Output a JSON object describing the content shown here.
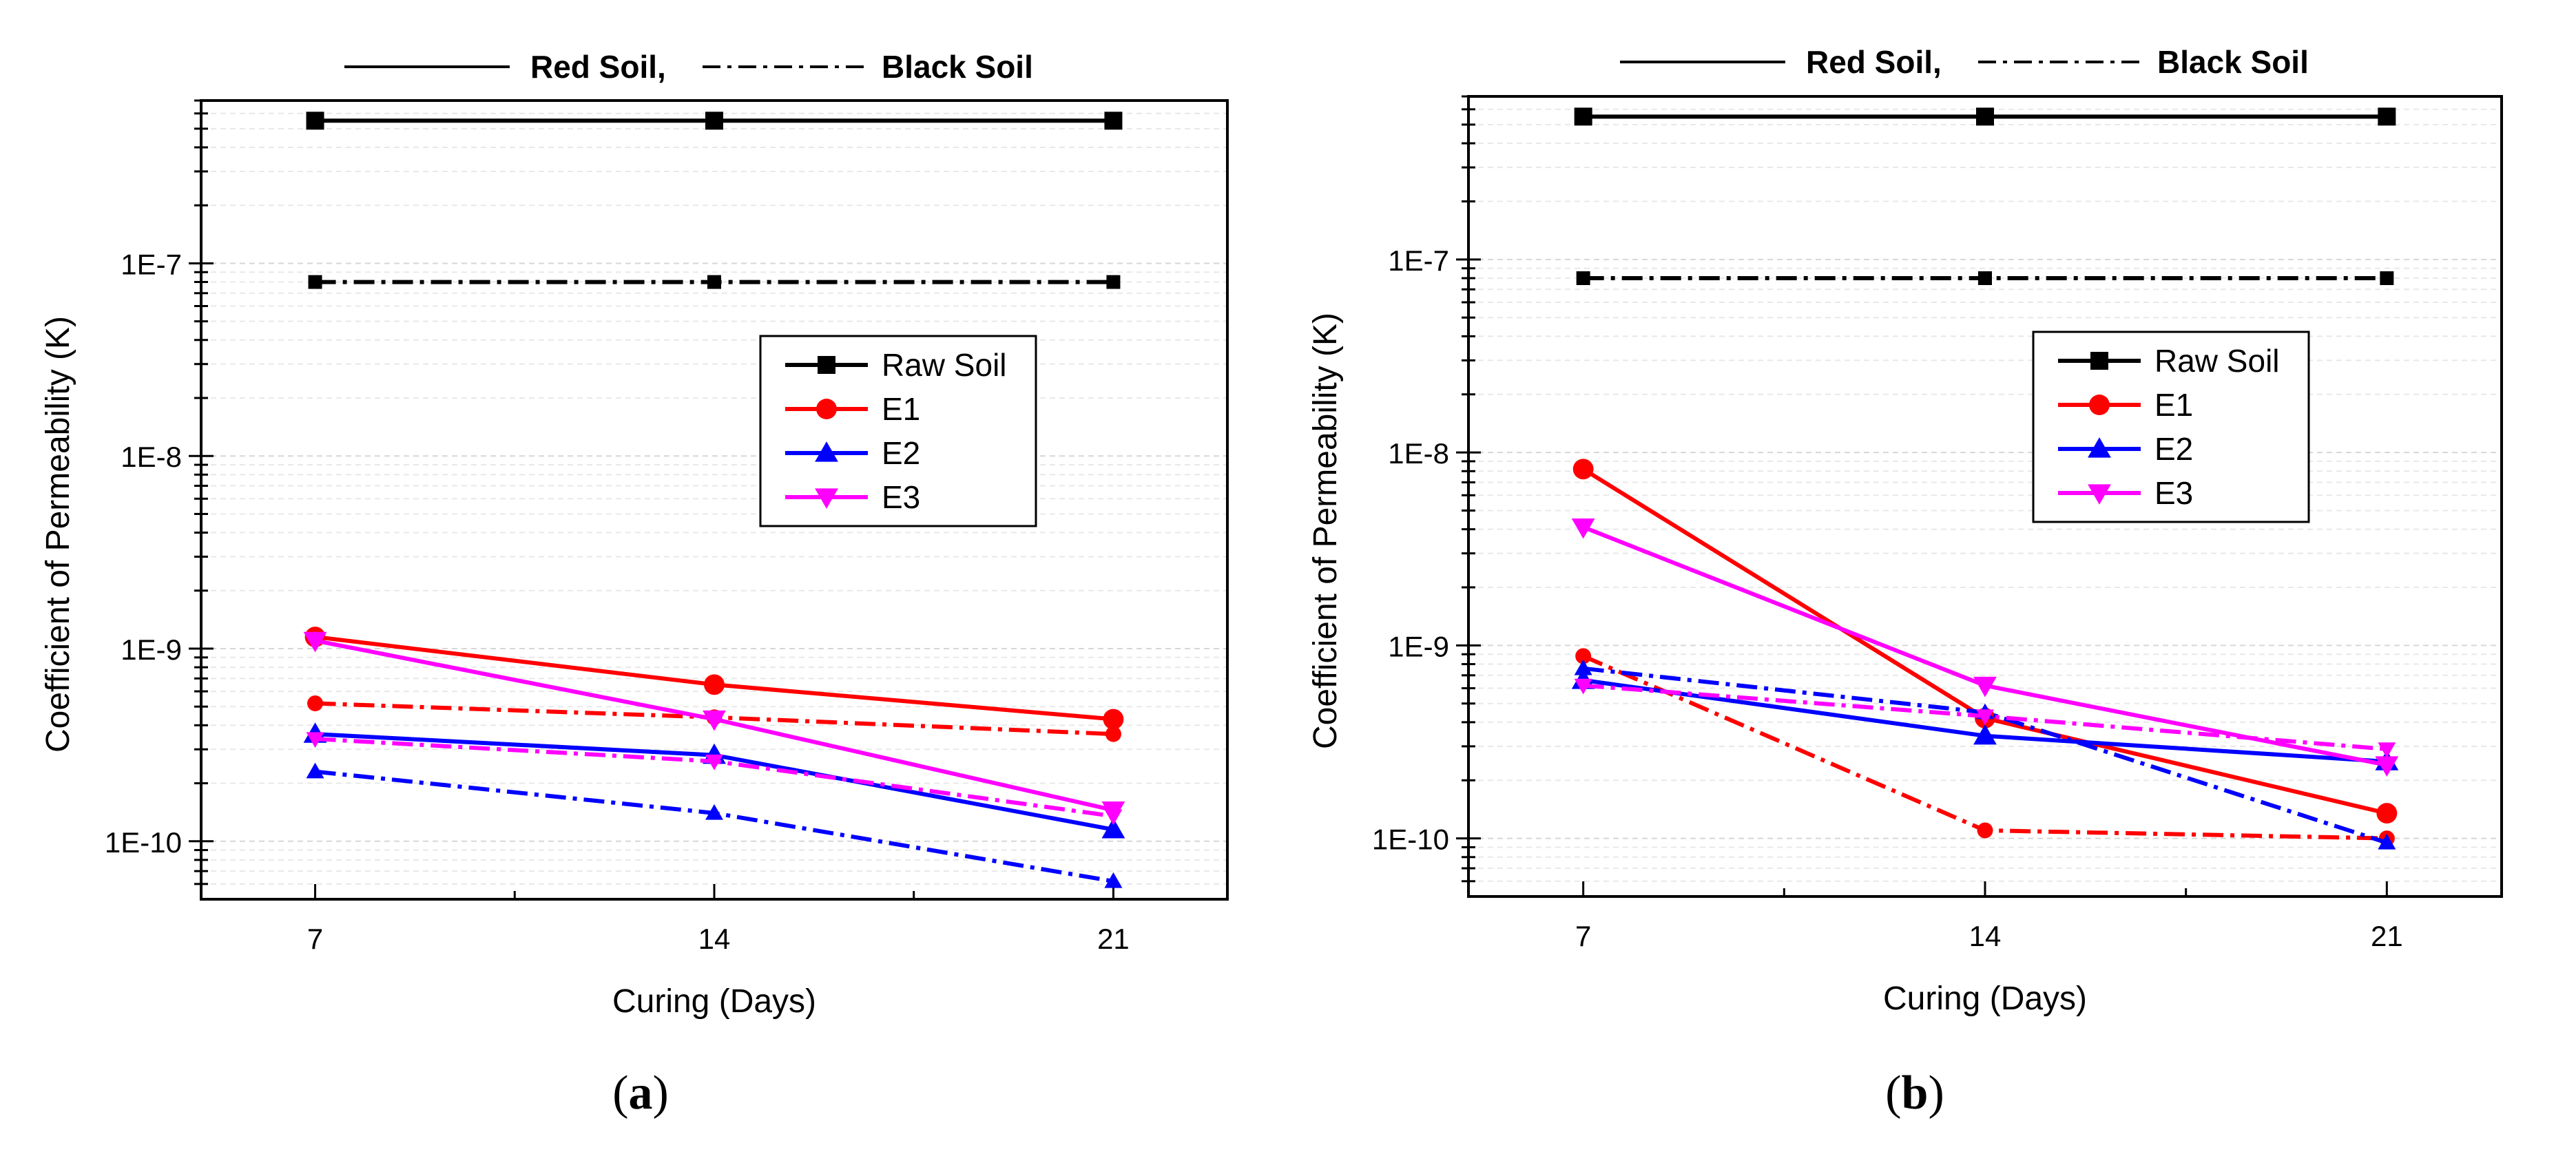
{
  "chart_data": [
    {
      "type": "line",
      "panel_label": "(a)",
      "style_legend": {
        "solid_label": "Red Soil,",
        "dashdot_label": "Black Soil"
      },
      "xlabel": "Curing (Days)",
      "ylabel": "Coefficient of Permeability (K)",
      "x": [
        7,
        14,
        21
      ],
      "x_tick_labels": [
        "7",
        "14",
        "21"
      ],
      "xlim": [
        5,
        23
      ],
      "y_scale": "log",
      "ylim": [
        5e-11,
        7e-07
      ],
      "y_tick_labels": [
        {
          "value": 1e-10,
          "label": "1E-10"
        },
        {
          "value": 1e-09,
          "label": "1E-9"
        },
        {
          "value": 1e-08,
          "label": "1E-8"
        },
        {
          "value": 1e-07,
          "label": "1E-7"
        }
      ],
      "legend": [
        "Raw Soil",
        "E1",
        "E2",
        "E3"
      ],
      "series": [
        {
          "name": "Raw Soil",
          "soil": "Red Soil",
          "linestyle": "solid",
          "color": "#000000",
          "marker": "square",
          "values": [
            5.5e-07,
            5.5e-07,
            5.5e-07
          ]
        },
        {
          "name": "Raw Soil",
          "soil": "Black Soil",
          "linestyle": "dashdot",
          "color": "#000000",
          "marker": "square",
          "values": [
            8e-08,
            8e-08,
            8e-08
          ]
        },
        {
          "name": "E1",
          "soil": "Red Soil",
          "linestyle": "solid",
          "color": "#ff0000",
          "marker": "circle",
          "values": [
            1.15e-09,
            6.5e-10,
            4.3e-10
          ]
        },
        {
          "name": "E1",
          "soil": "Black Soil",
          "linestyle": "dashdot",
          "color": "#ff0000",
          "marker": "circle",
          "values": [
            5.2e-10,
            4.4e-10,
            3.6e-10
          ]
        },
        {
          "name": "E2",
          "soil": "Red Soil",
          "linestyle": "solid",
          "color": "#0000ff",
          "marker": "triangle-up",
          "values": [
            3.6e-10,
            2.8e-10,
            1.15e-10
          ]
        },
        {
          "name": "E2",
          "soil": "Black Soil",
          "linestyle": "dashdot",
          "color": "#0000ff",
          "marker": "triangle-up",
          "values": [
            2.3e-10,
            1.4e-10,
            6.2e-11
          ]
        },
        {
          "name": "E3",
          "soil": "Red Soil",
          "linestyle": "solid",
          "color": "#ff00ff",
          "marker": "triangle-down",
          "values": [
            1.1e-09,
            4.3e-10,
            1.45e-10
          ]
        },
        {
          "name": "E3",
          "soil": "Black Soil",
          "linestyle": "dashdot",
          "color": "#ff00ff",
          "marker": "triangle-down",
          "values": [
            3.4e-10,
            2.6e-10,
            1.35e-10
          ]
        }
      ]
    },
    {
      "type": "line",
      "panel_label": "(b)",
      "style_legend": {
        "solid_label": "Red Soil,",
        "dashdot_label": "Black Soil"
      },
      "xlabel": "Curing (Days)",
      "ylabel": "Coefficient of Permeability (K)",
      "x": [
        7,
        14,
        21
      ],
      "x_tick_labels": [
        "7",
        "14",
        "21"
      ],
      "xlim": [
        5,
        23
      ],
      "y_scale": "log",
      "ylim": [
        5e-11,
        7e-07
      ],
      "y_tick_labels": [
        {
          "value": 1e-10,
          "label": "1E-10"
        },
        {
          "value": 1e-09,
          "label": "1E-9"
        },
        {
          "value": 1e-08,
          "label": "1E-8"
        },
        {
          "value": 1e-07,
          "label": "1E-7"
        }
      ],
      "legend": [
        "Raw Soil",
        "E1",
        "E2",
        "E3"
      ],
      "series": [
        {
          "name": "Raw Soil",
          "soil": "Red Soil",
          "linestyle": "solid",
          "color": "#000000",
          "marker": "square",
          "values": [
            5.5e-07,
            5.5e-07,
            5.5e-07
          ]
        },
        {
          "name": "Raw Soil",
          "soil": "Black Soil",
          "linestyle": "dashdot",
          "color": "#000000",
          "marker": "square",
          "values": [
            8e-08,
            8e-08,
            8e-08
          ]
        },
        {
          "name": "E1",
          "soil": "Red Soil",
          "linestyle": "solid",
          "color": "#ff0000",
          "marker": "circle",
          "values": [
            8.2e-09,
            4.2e-10,
            1.35e-10
          ]
        },
        {
          "name": "E1",
          "soil": "Black Soil",
          "linestyle": "dashdot",
          "color": "#ff0000",
          "marker": "circle",
          "values": [
            8.8e-10,
            1.1e-10,
            1e-10
          ]
        },
        {
          "name": "E2",
          "soil": "Red Soil",
          "linestyle": "solid",
          "color": "#0000ff",
          "marker": "triangle-up",
          "values": [
            6.6e-10,
            3.4e-10,
            2.5e-10
          ]
        },
        {
          "name": "E2",
          "soil": "Black Soil",
          "linestyle": "dashdot",
          "color": "#0000ff",
          "marker": "triangle-up",
          "values": [
            7.6e-10,
            4.5e-10,
            9.5e-11
          ]
        },
        {
          "name": "E3",
          "soil": "Red Soil",
          "linestyle": "solid",
          "color": "#ff00ff",
          "marker": "triangle-down",
          "values": [
            4.1e-09,
            6.2e-10,
            2.4e-10
          ]
        },
        {
          "name": "E3",
          "soil": "Black Soil",
          "linestyle": "dashdot",
          "color": "#ff00ff",
          "marker": "triangle-down",
          "values": [
            6.2e-10,
            4.3e-10,
            2.9e-10
          ]
        }
      ]
    }
  ]
}
